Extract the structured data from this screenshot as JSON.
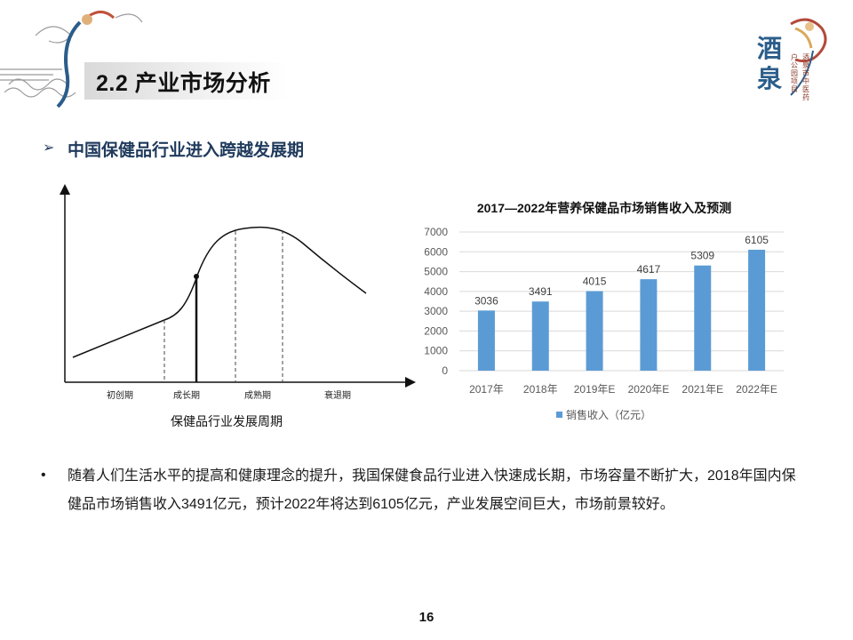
{
  "header": {
    "title": "2.2 产业市场分析"
  },
  "brand": {
    "logo_text": "酒泉",
    "tagline_1": "户公园项目",
    "tagline_2": "酒泉市中医药"
  },
  "section": {
    "arrow_glyph": "➢",
    "heading": "中国保健品行业进入跨越发展期"
  },
  "lifecycle": {
    "stages": [
      "初创期",
      "成长期",
      "成熟期",
      "衰退期"
    ],
    "caption": "保健品行业发展周期"
  },
  "chart_data": {
    "type": "bar",
    "title": "2017—2022年营养保健品市场销售收入及预测",
    "categories": [
      "2017年",
      "2018年",
      "2019年E",
      "2020年E",
      "2021年E",
      "2022年E"
    ],
    "series": [
      {
        "name": "销售收入（亿元）",
        "values": [
          3036,
          3491,
          4015,
          4617,
          5309,
          6105
        ]
      }
    ],
    "ylim": [
      0,
      7000
    ],
    "yticks": [
      0,
      1000,
      2000,
      3000,
      4000,
      5000,
      6000,
      7000
    ],
    "grid": true,
    "legend": "bottom",
    "bar_color": "#5b9bd5"
  },
  "body": {
    "bullet_glyph": "•",
    "text": "随着人们生活水平的提高和健康理念的提升，我国保健食品行业进入快速成长期，市场容量不断扩大，2018年国内保健品市场销售收入3491亿元，预计2022年将达到6105亿元，产业发展空间巨大，市场前景较好。"
  },
  "footer": {
    "page_number": "16"
  }
}
